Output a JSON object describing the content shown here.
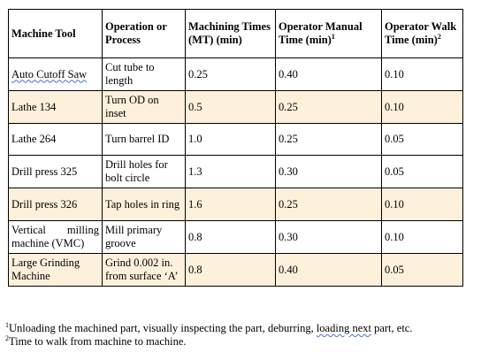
{
  "table": {
    "headers": [
      {
        "text": "Machine Tool",
        "sup": ""
      },
      {
        "text": "Operation or Process",
        "sup": ""
      },
      {
        "text": "Machining Times (MT) (min)",
        "sup": ""
      },
      {
        "text": "Operator Manual Time (min)",
        "sup": "1"
      },
      {
        "text": "Operator Walk Time (min)",
        "sup": "2"
      }
    ],
    "rows": [
      {
        "machine": "Auto Cutoff Saw",
        "operation": "Cut tube to length",
        "mt": "0.25",
        "manual": "0.40",
        "walk": "0.10"
      },
      {
        "machine": "Lathe 134",
        "operation": "Turn OD on inset",
        "mt": "0.5",
        "manual": "0.25",
        "walk": "0.10"
      },
      {
        "machine": "Lathe 264",
        "operation": "Turn barrel ID",
        "mt": "1.0",
        "manual": "0.25",
        "walk": "0.05"
      },
      {
        "machine": "Drill press 325",
        "operation": "Drill holes for bolt circle",
        "mt": "1.3",
        "manual": "0.30",
        "walk": "0.05"
      },
      {
        "machine": "Drill press 326",
        "operation": "Tap holes in ring",
        "mt": "1.6",
        "manual": "0.25",
        "walk": "0.10"
      },
      {
        "machine_a": "Vertical",
        "machine_b": "milling",
        "machine_c": "machine (VMC)",
        "operation": "Mill primary groove",
        "mt": "0.8",
        "manual": "0.30",
        "walk": "0.10"
      },
      {
        "machine": "Large Grinding Machine",
        "operation": "Grind 0.002 in. from surface ‘A’",
        "mt": "0.8",
        "manual": "0.40",
        "walk": "0.05"
      }
    ]
  },
  "footnotes": [
    {
      "sup": "1",
      "text_a": "Unloading the machined part, visually inspecting the part, deburring, ",
      "text_b": "loading next",
      "text_c": " part, etc."
    },
    {
      "sup": "2",
      "text": "Time to walk from machine to machine."
    }
  ],
  "colors": {
    "shaded_row": "#fdf1dc",
    "border": "#000000",
    "spellcheck": "#4a6fd0"
  }
}
